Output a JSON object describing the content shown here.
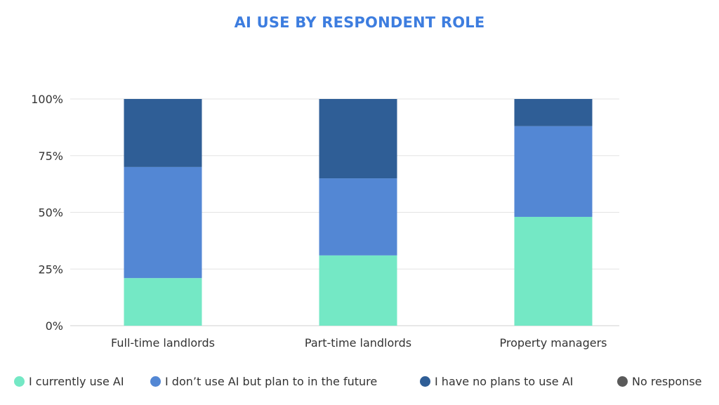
{
  "chart_data": {
    "type": "bar",
    "stacked": true,
    "title": "AI USE BY RESPONDENT ROLE",
    "categories": [
      "Full-time landlords",
      "Part-time landlords",
      "Property managers"
    ],
    "y_ticks": [
      "0%",
      "25%",
      "50%",
      "75%",
      "100%"
    ],
    "ylim": [
      0,
      100
    ],
    "grid": true,
    "legend_position": "bottom",
    "series": [
      {
        "name": "I currently use AI",
        "color": "#74e8c5",
        "values": [
          21,
          31,
          48
        ]
      },
      {
        "name": "I don’t use AI but plan to in the future",
        "color": "#5387d4",
        "values": [
          49,
          34,
          40
        ]
      },
      {
        "name": "I have no plans to use AI",
        "color": "#2f5e96",
        "values": [
          30,
          35,
          12
        ]
      },
      {
        "name": "No response",
        "color": "#5a5a5a",
        "values": [
          0,
          0,
          0
        ]
      }
    ]
  }
}
